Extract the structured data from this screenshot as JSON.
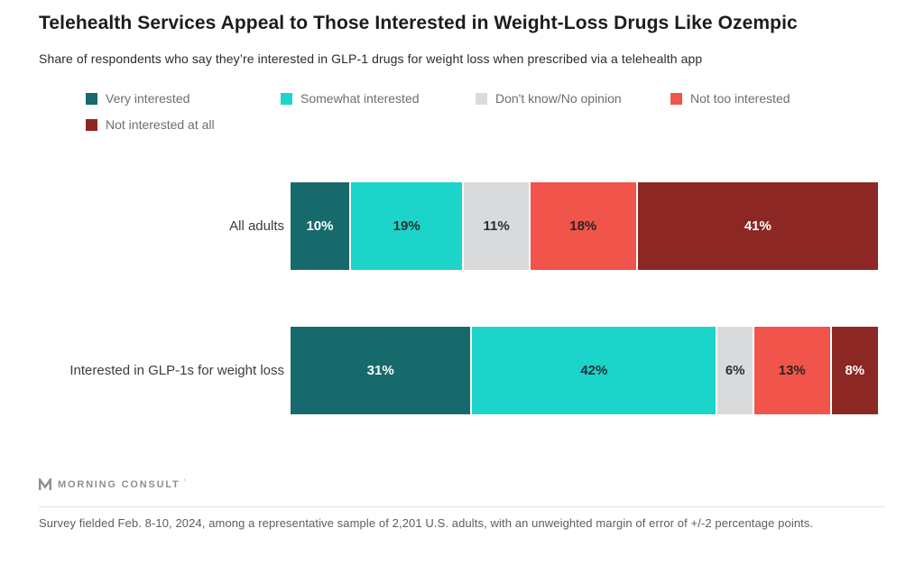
{
  "chart_data": {
    "type": "bar",
    "stacked": true,
    "orientation": "horizontal",
    "title": "Telehealth Services Appeal to Those Interested in Weight-Loss Drugs Like Ozempic",
    "subtitle": "Share of respondents who say they’re interested in GLP-1 drugs for weight loss when prescribed via a telehealth app",
    "categories": [
      "All adults",
      "Interested in GLP-1s for weight loss"
    ],
    "series": [
      {
        "name": "Very interested",
        "color": "#166a6b",
        "text_color": "#ffffff",
        "values": [
          10,
          31
        ]
      },
      {
        "name": "Somewhat interested",
        "color": "#1bd4ca",
        "text_color": "#253036",
        "values": [
          19,
          42
        ]
      },
      {
        "name": "Don't know/No opinion",
        "color": "#d9dadb",
        "text_color": "#253036",
        "values": [
          11,
          6
        ]
      },
      {
        "name": "Not too interested",
        "color": "#f0544b",
        "text_color": "#2b2420",
        "values": [
          18,
          13
        ]
      },
      {
        "name": "Not interested at all",
        "color": "#8c2723",
        "text_color": "#ffffff",
        "values": [
          41,
          8
        ]
      }
    ],
    "value_suffix": "%",
    "xlim": [
      0,
      100
    ],
    "legend_position": "top",
    "grid": false
  },
  "footer": {
    "brand": "MORNING CONSULT",
    "trademark": "’",
    "note": "Survey fielded Feb. 8-10, 2024, among a representative sample of 2,201 U.S. adults, with an unweighted margin of error of +/-2 percentage points."
  }
}
